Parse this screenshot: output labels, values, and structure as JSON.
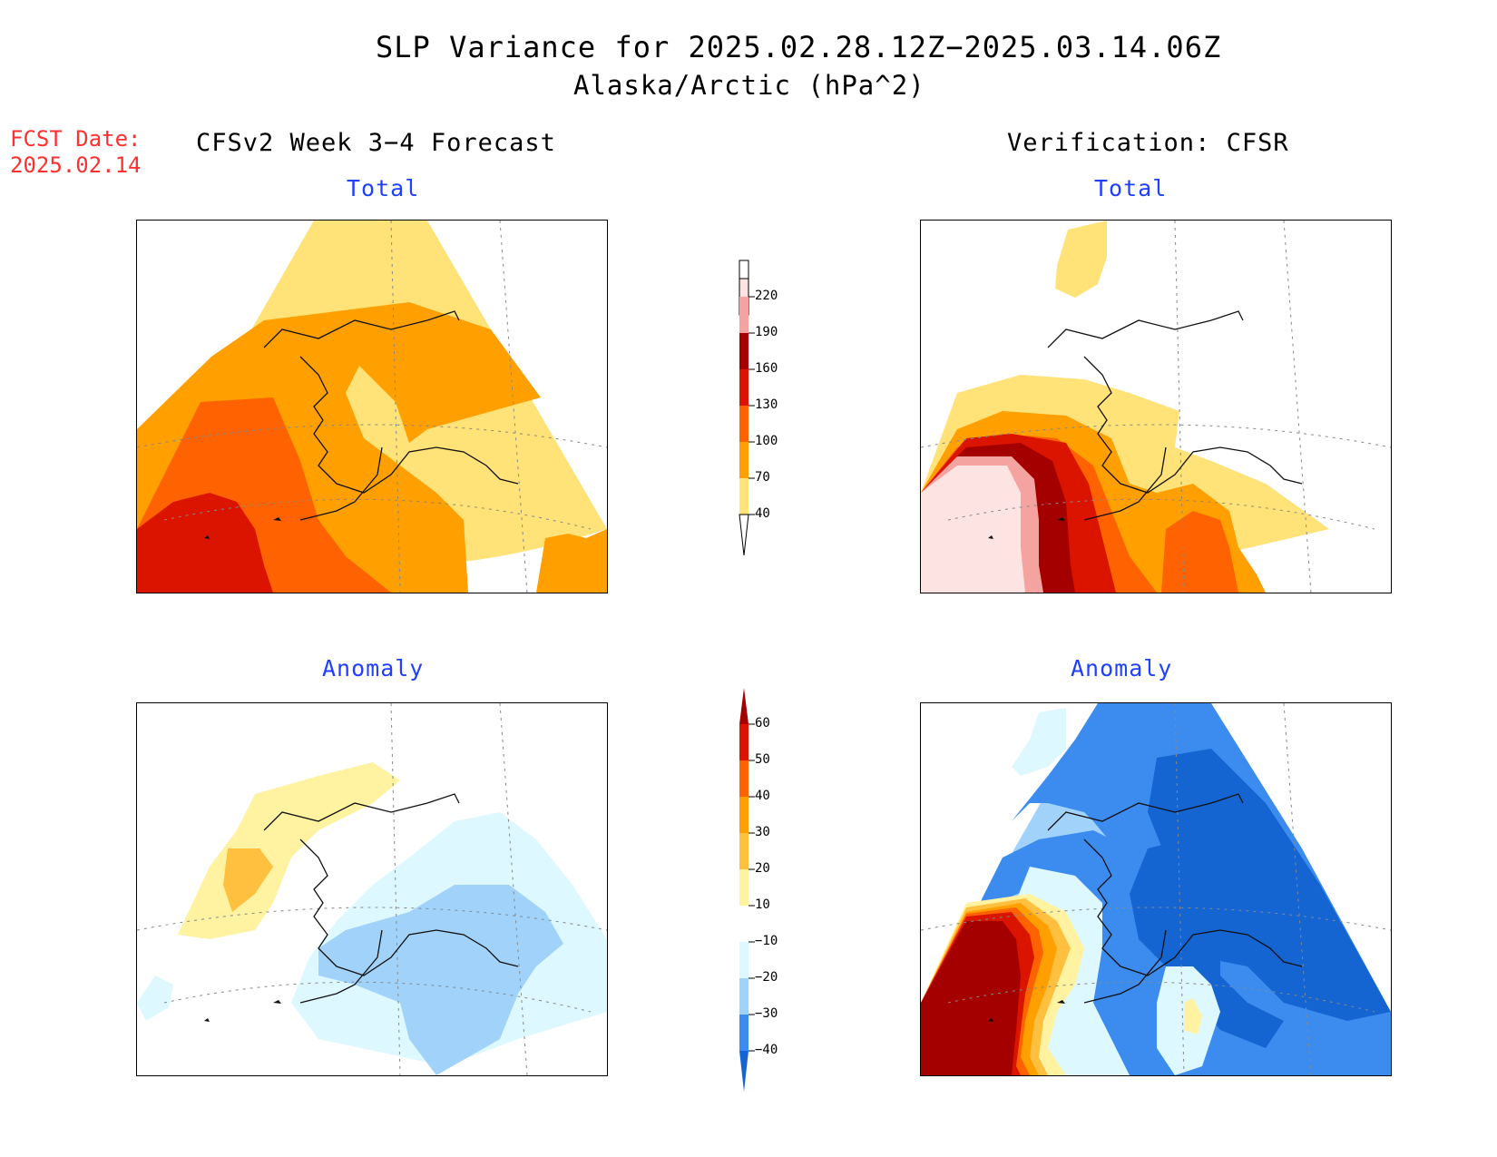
{
  "title": "SLP Variance for 2025.02.28.12Z−2025.03.14.06Z",
  "subtitle": "Alaska/Arctic (hPa^2)",
  "fcst_date": {
    "label": "FCST Date:",
    "value": "2025.02.14"
  },
  "columns": {
    "forecast": "CFSv2 Week 3−4 Forecast",
    "verification": "Verification: CFSR"
  },
  "panels": {
    "forecast_total": {
      "label": "Total"
    },
    "verification_total": {
      "label": "Total"
    },
    "forecast_anomaly": {
      "label": "Anomaly"
    },
    "verification_anomaly": {
      "label": "Anomaly"
    }
  },
  "total_colorbar": {
    "levels": [
      "220",
      "190",
      "160",
      "130",
      "100",
      "70",
      "40"
    ],
    "colors": [
      "#fde3e1",
      "#f4a3a0",
      "#a50000",
      "#db1400",
      "#ff6200",
      "#ffa000",
      "#ffe278"
    ]
  },
  "anomaly_colorbar": {
    "levels": [
      "60",
      "50",
      "40",
      "30",
      "20",
      "10",
      "−10",
      "−20",
      "−30",
      "−40"
    ],
    "colors": {
      "above_60": "#a50000",
      "50_60": "#db1400",
      "40_50": "#ff6200",
      "30_40": "#ffa000",
      "20_30": "#ffc040",
      "10_20": "#fff2a0",
      "neutral": "#ffffff",
      "m20_m10": "#def8ff",
      "m30_m20": "#a0d2fa",
      "m40_m30": "#3c8cf0",
      "below_m40": "#1464d2"
    }
  }
}
